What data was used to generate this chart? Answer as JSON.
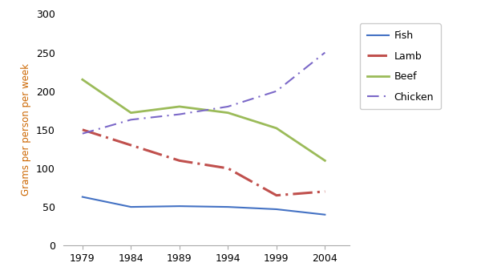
{
  "years": [
    1979,
    1984,
    1989,
    1994,
    1999,
    2004
  ],
  "fish": [
    63,
    50,
    51,
    50,
    47,
    40
  ],
  "lamb": [
    150,
    130,
    110,
    100,
    65,
    70
  ],
  "beef": [
    215,
    172,
    180,
    172,
    152,
    110
  ],
  "chicken": [
    145,
    163,
    170,
    180,
    200,
    250
  ],
  "fish_color": "#4472C4",
  "lamb_color": "#C0504D",
  "beef_color": "#9BBB59",
  "chicken_color": "#7B68C8",
  "ylabel": "Grams per person per week",
  "ylim": [
    0,
    300
  ],
  "yticks": [
    0,
    50,
    100,
    150,
    200,
    250,
    300
  ],
  "legend_labels": [
    "Fish",
    "Lamb",
    "Beef",
    "Chicken"
  ],
  "figwidth": 6.05,
  "figheight": 3.48,
  "dpi": 100
}
